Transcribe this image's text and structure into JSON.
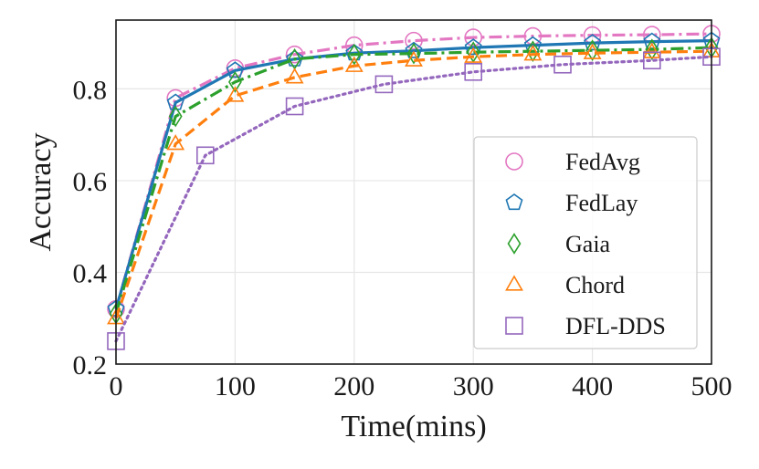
{
  "chart_data": {
    "type": "line",
    "title": "",
    "xlabel": "Time(mins)",
    "ylabel": "Accuracy",
    "xlim": [
      0,
      500
    ],
    "ylim": [
      0.2,
      0.95
    ],
    "xticks": [
      0,
      100,
      200,
      300,
      400,
      500
    ],
    "yticks": [
      0.2,
      0.4,
      0.6,
      0.8
    ],
    "xtick_labels": [
      "0",
      "100",
      "200",
      "300",
      "400",
      "500"
    ],
    "ytick_labels": [
      "0.2",
      "0.4",
      "0.6",
      "0.8"
    ],
    "grid": true,
    "legend_position": "center-right",
    "series": [
      {
        "name": "FedAvg",
        "color": "#e377c2",
        "line_style": "dashdot",
        "marker": "circle",
        "x": [
          0,
          50,
          100,
          150,
          200,
          250,
          300,
          350,
          400,
          450,
          500
        ],
        "y": [
          0.32,
          0.78,
          0.845,
          0.875,
          0.895,
          0.905,
          0.912,
          0.915,
          0.917,
          0.918,
          0.92
        ]
      },
      {
        "name": "FedLay",
        "color": "#1f77b4",
        "line_style": "solid",
        "marker": "pentagon",
        "x": [
          0,
          50,
          100,
          150,
          200,
          250,
          300,
          350,
          400,
          450,
          500
        ],
        "y": [
          0.32,
          0.77,
          0.84,
          0.865,
          0.878,
          0.883,
          0.89,
          0.895,
          0.9,
          0.903,
          0.905
        ]
      },
      {
        "name": "Gaia",
        "color": "#2ca02c",
        "line_style": "dashdot",
        "marker": "diamond",
        "x": [
          0,
          50,
          100,
          150,
          200,
          250,
          300,
          350,
          400,
          450,
          500
        ],
        "y": [
          0.31,
          0.74,
          0.815,
          0.865,
          0.875,
          0.877,
          0.88,
          0.882,
          0.884,
          0.886,
          0.89
        ]
      },
      {
        "name": "Chord",
        "color": "#ff7f0e",
        "line_style": "dashed",
        "marker": "triangle",
        "x": [
          0,
          50,
          100,
          150,
          200,
          250,
          300,
          350,
          400,
          450,
          500
        ],
        "y": [
          0.3,
          0.68,
          0.785,
          0.825,
          0.85,
          0.862,
          0.87,
          0.875,
          0.878,
          0.88,
          0.882
        ]
      },
      {
        "name": "DFL-DDS",
        "color": "#9467bd",
        "line_style": "dotted",
        "marker": "square",
        "x": [
          0,
          75,
          150,
          225,
          300,
          375,
          450,
          500
        ],
        "y": [
          0.25,
          0.655,
          0.762,
          0.81,
          0.837,
          0.853,
          0.862,
          0.87
        ]
      }
    ]
  }
}
